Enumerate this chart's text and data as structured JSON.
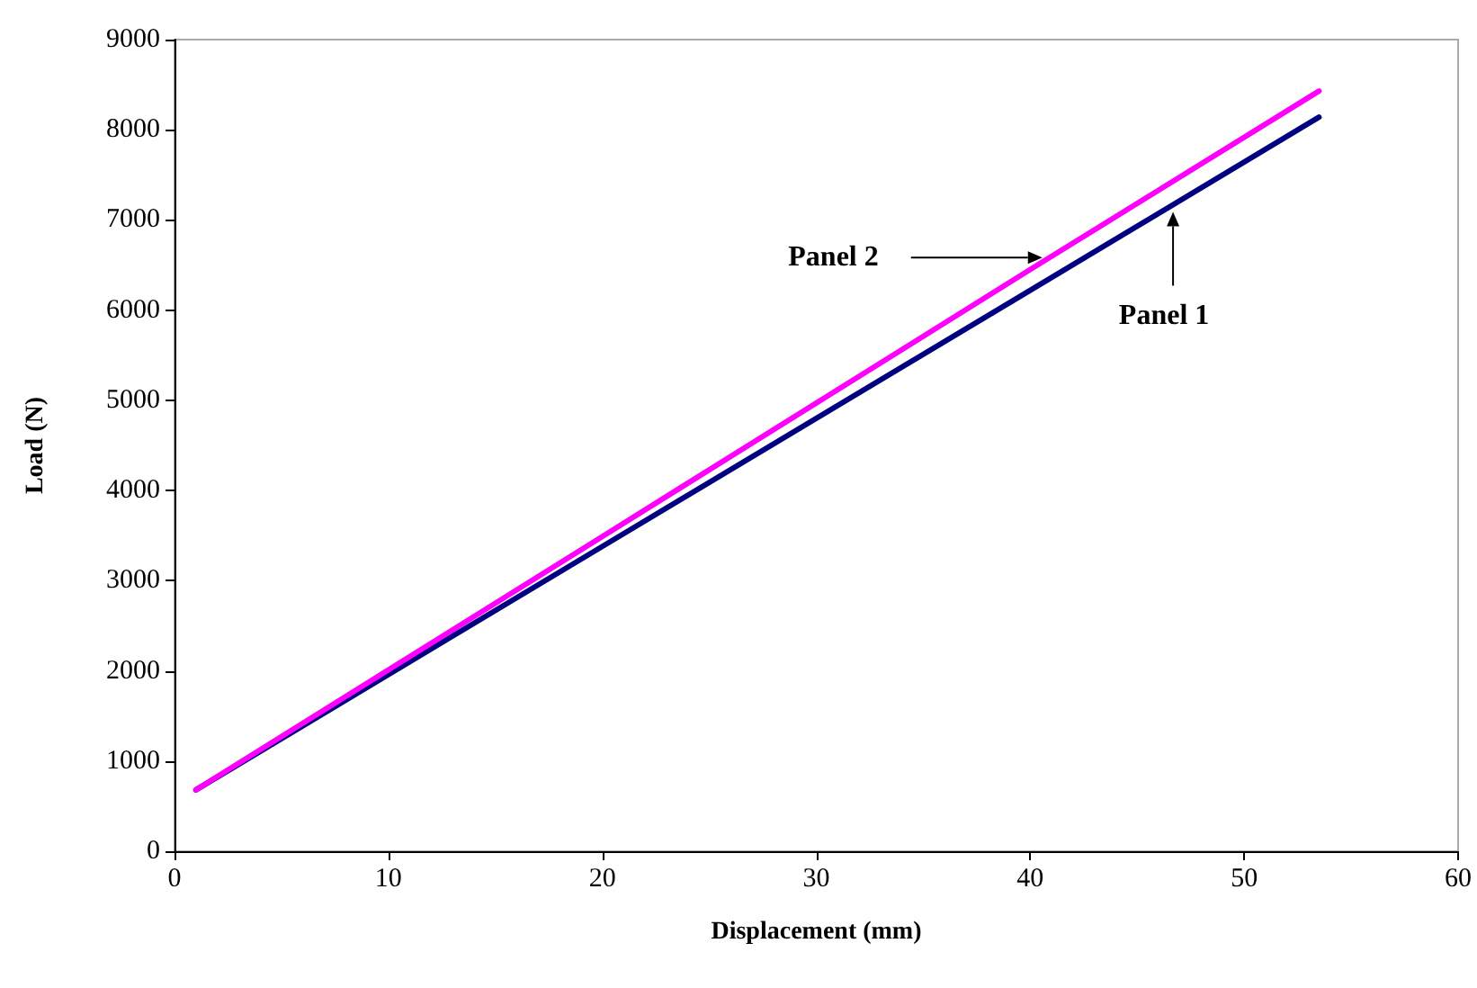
{
  "chart_data": {
    "type": "line",
    "xlabel": "Displacement (mm)",
    "ylabel": "Load (N)",
    "xlim": [
      0,
      60
    ],
    "xticks": [
      0,
      10,
      20,
      30,
      40,
      50,
      60
    ],
    "ylim": [
      0,
      9000
    ],
    "yticks": [
      0,
      1000,
      2000,
      3000,
      4000,
      5000,
      6000,
      7000,
      8000,
      9000
    ],
    "grid": false,
    "legend": false,
    "marker": "none",
    "line_style": "solid",
    "series": [
      {
        "name": "Panel 1",
        "color": "#000080",
        "x": [
          1,
          20,
          40,
          53.5
        ],
        "values": [
          680,
          3380,
          6220,
          8140
        ]
      },
      {
        "name": "Panel 2",
        "color": "#ff00ff",
        "x": [
          1,
          20,
          40,
          53.5
        ],
        "values": [
          680,
          3490,
          6450,
          8430
        ]
      }
    ]
  }
}
